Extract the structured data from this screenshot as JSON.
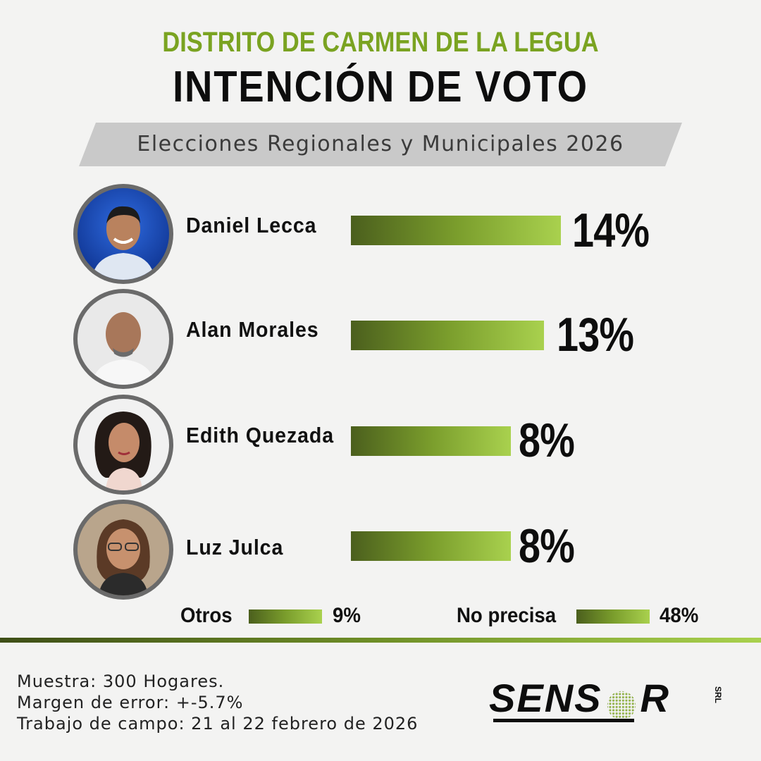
{
  "header": {
    "district": "DISTRITO DE CARMEN DE LA LEGUA",
    "title": "INTENCIÓN DE VOTO",
    "subtitle": "Elecciones Regionales y Municipales 2026"
  },
  "chart_data": {
    "type": "bar",
    "orientation": "horizontal",
    "title": "INTENCIÓN DE VOTO",
    "categories": [
      "Daniel Lecca",
      "Alan Morales",
      "Edith Quezada",
      "Luz Julca",
      "Otros",
      "No precisa"
    ],
    "values": [
      14,
      13,
      8,
      8,
      9,
      48
    ],
    "labels": [
      "14%",
      "13%",
      "8%",
      "8%",
      "9%",
      "48%"
    ],
    "unit": "%"
  },
  "candidates": [
    {
      "name": "Daniel Lecca",
      "pct": "14%",
      "photo": "photo-daniel-lecca"
    },
    {
      "name": "Alan Morales",
      "pct": "13%",
      "photo": "photo-alan-morales"
    },
    {
      "name": "Edith Quezada",
      "pct": "8%",
      "photo": "photo-edith-quezada"
    },
    {
      "name": "Luz Julca",
      "pct": "8%",
      "photo": "photo-luz-julca"
    }
  ],
  "others": {
    "label": "Otros",
    "pct": "9%"
  },
  "undecided": {
    "label": "No precisa",
    "pct": "48%"
  },
  "footer": {
    "sample": "Muestra: 300 Hogares.",
    "margin": "Margen de error: +-5.7%",
    "fieldwork": "Trabajo de campo: 21 al 22 febrero de 2026"
  },
  "logo": {
    "text": "SENS",
    "text2": "R",
    "suffix": "SRL"
  },
  "colors": {
    "accent_green": "#7aa321",
    "bar_dark": "#4b5f1d",
    "bar_light": "#a9d14e",
    "band": "#c9c9c9"
  }
}
